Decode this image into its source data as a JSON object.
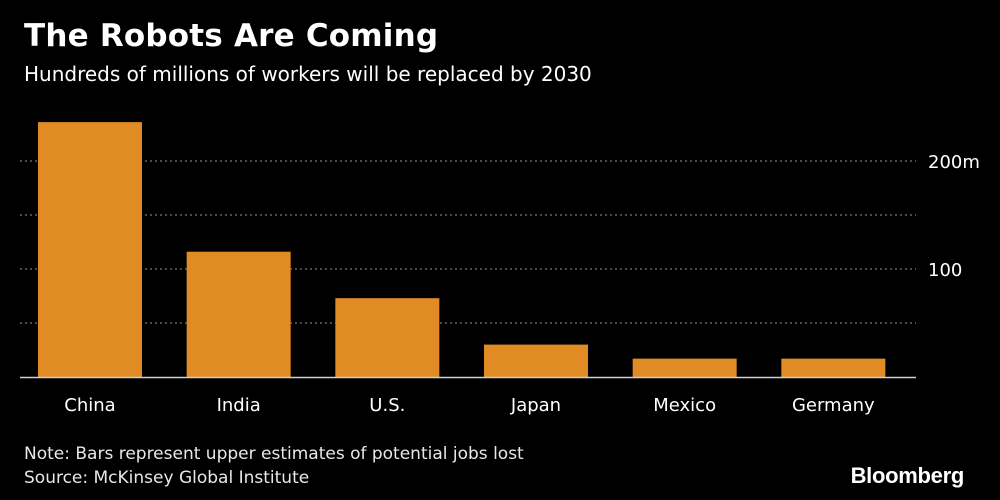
{
  "header": {
    "title": "The Robots Are Coming",
    "subtitle": "Hundreds of millions of workers will be replaced by 2030"
  },
  "footer": {
    "note": "Note: Bars represent upper estimates of potential jobs lost",
    "source": "Source: McKinsey Global Institute",
    "brand": "Bloomberg"
  },
  "colors": {
    "bar": "#e08b24",
    "background": "#000000",
    "grid": "#7a7a7a",
    "text": "#ffffff"
  },
  "chart_data": {
    "type": "bar",
    "categories": [
      "China",
      "India",
      "U.S.",
      "Japan",
      "Mexico",
      "Germany"
    ],
    "values": [
      236,
      116,
      73,
      30,
      17,
      17
    ],
    "ylim": [
      0,
      250
    ],
    "yticks": [
      {
        "value": 200,
        "label": "200m"
      },
      {
        "value": 100,
        "label": "100"
      }
    ],
    "gridlines": [
      50,
      100,
      150,
      200
    ],
    "grid": true,
    "legend": "none"
  }
}
